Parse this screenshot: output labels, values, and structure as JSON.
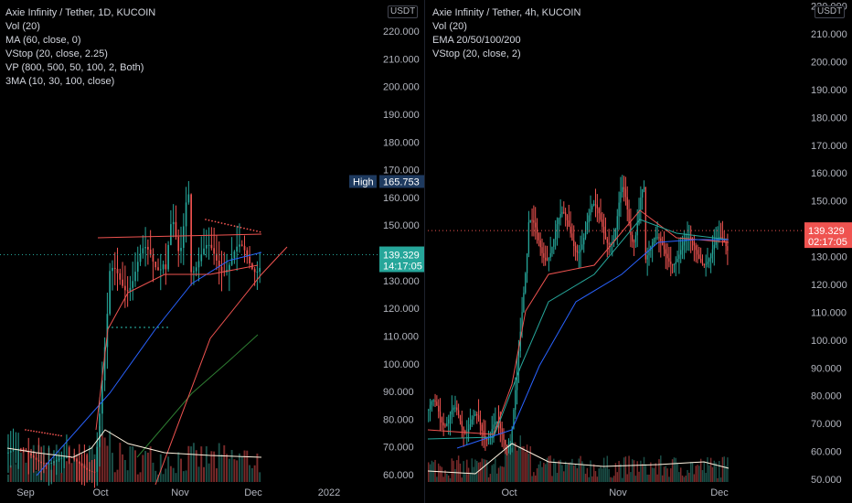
{
  "chart_data": [
    {
      "type": "candlestick",
      "title": "Axie Infinity / Tether, 1D, KUCOIN",
      "indicators": [
        "Vol (20)",
        "MA (60, close, 0)",
        "VStop (20, close, 2.25)",
        "VP (800, 500, 50, 100, 2, Both)",
        "3MA (10, 30, 100, close)"
      ],
      "price_unit": "USDT",
      "y_ticks": [
        60,
        70,
        80,
        90,
        100,
        110,
        120,
        130,
        140,
        150,
        160,
        170,
        180,
        190,
        200,
        210,
        220,
        230
      ],
      "y_tick_labels": [
        "60.000",
        "70.000",
        "80.000",
        "90.000",
        "100.000",
        "110.000",
        "120.000",
        "130.000",
        "140.000",
        "150.000",
        "160.000",
        "170.000",
        "180.000",
        "190.000",
        "200.000",
        "210.000",
        "220.000",
        "230.000"
      ],
      "ylim": [
        58,
        230
      ],
      "x_ticks": [
        "Sep",
        "Oct",
        "Nov",
        "Dec",
        "2022"
      ],
      "high_label": "High",
      "high_value": "165.753",
      "high_price": 165.753,
      "last_price": 139.329,
      "last_price_label": "139.329",
      "countdown": "14:17:05",
      "colors": {
        "up": "#26a69a",
        "down": "#ef5350",
        "ma_blue": "#2962ff",
        "ma_green": "#2e7d32",
        "vstop": "#ef5350",
        "volume_ma": "#fff3e0"
      }
    },
    {
      "type": "candlestick",
      "title": "Axie Infinity / Tether, 4h, KUCOIN",
      "indicators": [
        "Vol (20)",
        "EMA 20/50/100/200",
        "VStop (20, close, 2)"
      ],
      "price_unit": "USDT",
      "y_ticks": [
        50,
        60,
        70,
        80,
        90,
        100,
        110,
        120,
        130,
        140,
        150,
        160,
        170,
        180,
        190,
        200,
        210,
        220
      ],
      "y_tick_labels": [
        "50.000",
        "60.000",
        "70.000",
        "80.000",
        "90.000",
        "100.000",
        "110.000",
        "120.000",
        "130.000",
        "140.000",
        "150.000",
        "160.000",
        "170.000",
        "180.000",
        "190.000",
        "200.000",
        "210.000",
        "220.000"
      ],
      "ylim": [
        50,
        222
      ],
      "x_ticks": [
        "Oct",
        "Nov",
        "Dec"
      ],
      "last_price": 139.329,
      "last_price_label": "139.329",
      "countdown": "02:17:05",
      "colors": {
        "up": "#26a69a",
        "down": "#ef5350",
        "ema20": "#ef5350",
        "ema50": "#26a69a",
        "ema100": "#2962ff",
        "vstop": "#ef5350"
      }
    }
  ]
}
